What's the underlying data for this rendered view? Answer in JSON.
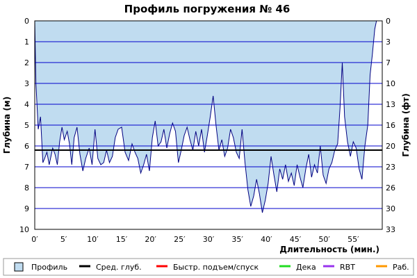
{
  "chart_data": {
    "type": "area",
    "title": "Профиль погружения № 46",
    "xlabel": "Длительность (мин.)",
    "ylabel": "Глубина (м)",
    "y2label": "Глубина (фт)",
    "xlim": [
      0,
      60
    ],
    "ylim": [
      0,
      10
    ],
    "y_inverted": true,
    "x_ticks": [
      "0′",
      "5′",
      "10′",
      "15′",
      "20′",
      "25′",
      "30′",
      "35′",
      "40′",
      "45′",
      "50′",
      "55′"
    ],
    "y_ticks": [
      "0",
      "1",
      "2",
      "3",
      "4",
      "5",
      "6",
      "7",
      "8",
      "9",
      "10"
    ],
    "y2_ticks": [
      "0",
      "3",
      "7",
      "10",
      "13",
      "16",
      "20",
      "23",
      "26",
      "30",
      "33"
    ],
    "avg_depth": 6.2,
    "grid": true,
    "series": [
      {
        "name": "Профиль",
        "x": [
          0,
          0.2,
          0.6,
          1.0,
          1.4,
          1.7,
          2.1,
          2.5,
          3.1,
          3.5,
          3.9,
          4.3,
          4.7,
          5.1,
          5.6,
          6.0,
          6.4,
          6.8,
          7.3,
          7.8,
          8.3,
          8.8,
          9.4,
          9.9,
          10.4,
          10.9,
          11.4,
          11.9,
          12.4,
          12.9,
          13.4,
          13.9,
          14.4,
          15.0,
          15.6,
          16.2,
          16.8,
          17.3,
          17.8,
          18.3,
          18.8,
          19.3,
          19.8,
          20.3,
          20.8,
          21.3,
          21.8,
          22.3,
          22.8,
          23.3,
          23.8,
          24.3,
          24.8,
          25.3,
          25.8,
          26.3,
          26.8,
          27.3,
          27.8,
          28.3,
          28.8,
          29.3,
          29.8,
          30.3,
          30.8,
          31.3,
          31.8,
          32.3,
          32.8,
          33.3,
          33.8,
          34.3,
          34.8,
          35.3,
          35.8,
          36.3,
          36.8,
          37.3,
          37.8,
          38.3,
          38.8,
          39.3,
          39.8,
          40.3,
          40.8,
          41.3,
          41.8,
          42.3,
          42.8,
          43.3,
          43.8,
          44.3,
          44.8,
          45.3,
          45.8,
          46.3,
          46.8,
          47.3,
          47.8,
          48.3,
          48.8,
          49.3,
          49.8,
          50.3,
          50.8,
          51.3,
          51.8,
          52.3,
          52.7,
          53.1,
          53.5,
          54.0,
          54.5,
          55.0,
          55.5,
          56.0,
          56.5,
          57.0,
          57.5,
          57.9,
          58.3,
          58.7,
          59.0
        ],
        "y": [
          0,
          3.0,
          5.2,
          4.6,
          6.8,
          6.6,
          6.3,
          6.9,
          6.1,
          6.4,
          6.9,
          5.8,
          5.1,
          5.7,
          5.3,
          5.9,
          6.9,
          5.6,
          5.1,
          6.4,
          7.2,
          6.6,
          6.1,
          6.9,
          5.2,
          6.6,
          6.9,
          6.8,
          6.2,
          6.8,
          6.5,
          5.6,
          5.2,
          5.1,
          6.3,
          6.7,
          5.9,
          6.3,
          6.6,
          7.3,
          6.9,
          6.4,
          7.2,
          5.6,
          4.8,
          6.0,
          5.8,
          5.2,
          6.1,
          5.4,
          4.9,
          5.3,
          6.8,
          6.2,
          5.5,
          5.1,
          5.7,
          6.2,
          5.3,
          6.0,
          5.2,
          6.3,
          5.5,
          4.6,
          3.6,
          5.0,
          6.2,
          5.7,
          6.5,
          6.1,
          5.2,
          5.6,
          6.3,
          6.6,
          5.2,
          6.8,
          8.1,
          8.9,
          8.4,
          7.6,
          8.3,
          9.2,
          8.6,
          7.8,
          6.5,
          7.4,
          8.2,
          7.1,
          7.6,
          6.9,
          7.7,
          7.3,
          7.9,
          6.9,
          7.5,
          8.0,
          7.1,
          6.4,
          7.5,
          6.9,
          7.3,
          6.0,
          7.4,
          7.8,
          7.1,
          6.8,
          6.2,
          5.9,
          4.2,
          2.0,
          4.6,
          5.8,
          6.5,
          5.8,
          6.1,
          7.1,
          7.6,
          6.0,
          5.0,
          2.6,
          1.6,
          0.4,
          0
        ]
      }
    ],
    "legend": {
      "position": "bottom",
      "entries": [
        {
          "label": "Профиль",
          "color": "#c0dcf0",
          "kind": "box"
        },
        {
          "label": "Сред. глуб.",
          "color": "#000000",
          "kind": "line"
        },
        {
          "label": "Быстр. подъем/спуск",
          "color": "#ff0000",
          "kind": "line"
        },
        {
          "label": "Дека",
          "color": "#22dd22",
          "kind": "line"
        },
        {
          "label": "RBT",
          "color": "#9933ee",
          "kind": "line"
        },
        {
          "label": "Раб.",
          "color": "#ff9900",
          "kind": "line"
        }
      ]
    },
    "colors": {
      "fill": "#c0dcf0",
      "profile_line": "#000080",
      "grid": "#0000cc",
      "avg_line": "#000000"
    }
  }
}
